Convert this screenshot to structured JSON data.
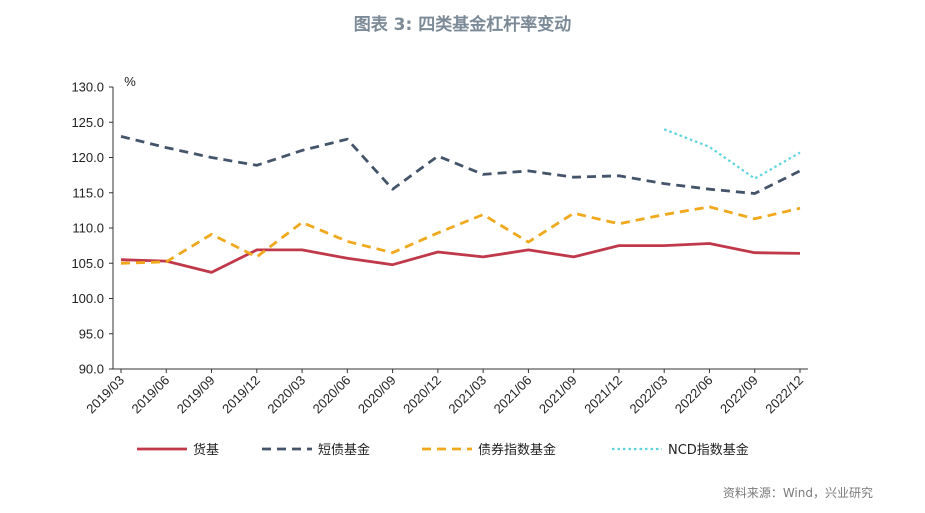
{
  "title": "图表 3:   四类基金杠杆率变动",
  "source": "资料来源：Wind，兴业研究",
  "chart_data": {
    "type": "line",
    "title": "图表 3:   四类基金杠杆率变动",
    "ylabel": "%",
    "ylim": [
      90,
      130
    ],
    "yticks": [
      "130.0",
      "125.0",
      "120.0",
      "115.0",
      "110.0",
      "105.0",
      "100.0",
      "95.0",
      "90.0"
    ],
    "categories": [
      "2019/03",
      "2019/06",
      "2019/09",
      "2019/12",
      "2020/03",
      "2020/06",
      "2020/09",
      "2020/12",
      "2021/03",
      "2021/06",
      "2021/09",
      "2021/12",
      "2022/03",
      "2022/06",
      "2022/09",
      "2022/12"
    ],
    "grid": false,
    "legend": "bottom",
    "series": [
      {
        "name": "货基",
        "color": "#c0394b",
        "style": "solid",
        "values": [
          105.5,
          105.3,
          103.7,
          106.9,
          106.9,
          105.7,
          104.8,
          106.6,
          105.9,
          106.9,
          105.9,
          107.5,
          107.5,
          107.8,
          106.5,
          106.4
        ]
      },
      {
        "name": "短债基金",
        "color": "#44546a",
        "style": "dashed",
        "values": [
          123.0,
          121.4,
          120.0,
          118.9,
          121.0,
          122.6,
          115.5,
          120.2,
          117.6,
          118.1,
          117.2,
          117.4,
          116.3,
          115.5,
          114.9,
          118.1
        ]
      },
      {
        "name": "债券指数基金",
        "color": "#f0a81c",
        "style": "dashed",
        "values": [
          105.0,
          105.2,
          109.1,
          105.9,
          110.8,
          108.1,
          106.5,
          109.3,
          111.9,
          108.0,
          112.1,
          110.6,
          111.9,
          113.0,
          111.3,
          112.8
        ]
      },
      {
        "name": "NCD指数基金",
        "color": "#5dd3dd",
        "style": "dotted",
        "values": [
          null,
          null,
          null,
          null,
          null,
          null,
          null,
          null,
          null,
          null,
          null,
          null,
          124.0,
          121.5,
          117.0,
          120.7
        ]
      }
    ]
  }
}
